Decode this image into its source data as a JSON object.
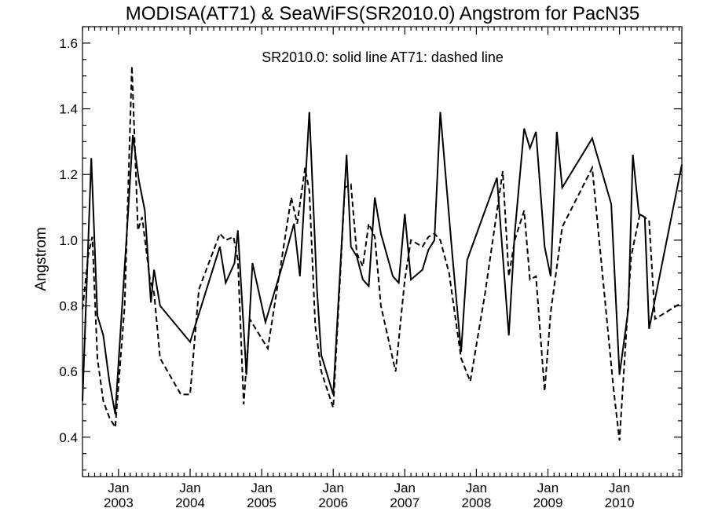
{
  "chart_data": {
    "type": "line",
    "title": "MODISA(AT71) & SeaWiFS(SR2010.0)  Angstrom for PacN35",
    "annotation": "SR2010.0: solid line   AT71: dashed line",
    "xlabel": "",
    "ylabel": "Angstrom",
    "xlim": [
      "2002-07-01",
      "2010-11-15"
    ],
    "ylim": [
      0.28,
      1.65
    ],
    "yticks": [
      0.4,
      0.6,
      0.8,
      1.0,
      1.2,
      1.4,
      1.6
    ],
    "yticklabels": [
      "0.4",
      "0.6",
      "0.8",
      "1.0",
      "1.2",
      "1.4",
      "1.6"
    ],
    "xticks": [
      {
        "date": "2003-01-01",
        "line1": "Jan",
        "line2": "2003"
      },
      {
        "date": "2004-01-01",
        "line1": "Jan",
        "line2": "2004"
      },
      {
        "date": "2005-01-01",
        "line1": "Jan",
        "line2": "2005"
      },
      {
        "date": "2006-01-01",
        "line1": "Jan",
        "line2": "2006"
      },
      {
        "date": "2007-01-01",
        "line1": "Jan",
        "line2": "2007"
      },
      {
        "date": "2008-01-01",
        "line1": "Jan",
        "line2": "2008"
      },
      {
        "date": "2009-01-01",
        "line1": "Jan",
        "line2": "2009"
      },
      {
        "date": "2010-01-01",
        "line1": "Jan",
        "line2": "2010"
      }
    ],
    "grid": false,
    "series": [
      {
        "name": "SR2010.0",
        "style": "solid",
        "color": "#000000",
        "points": [
          [
            "2002-07-01",
            0.51
          ],
          [
            "2002-08-15",
            1.25
          ],
          [
            "2002-09-15",
            0.77
          ],
          [
            "2002-10-15",
            0.71
          ],
          [
            "2002-11-15",
            0.57
          ],
          [
            "2002-12-15",
            0.47
          ],
          [
            "2003-02-15",
            1.05
          ],
          [
            "2003-03-15",
            1.32
          ],
          [
            "2003-04-15",
            1.18
          ],
          [
            "2003-05-15",
            1.09
          ],
          [
            "2003-06-15",
            0.81
          ],
          [
            "2003-07-01",
            0.91
          ],
          [
            "2003-08-01",
            0.8
          ],
          [
            "2004-01-01",
            0.69
          ],
          [
            "2004-06-01",
            0.98
          ],
          [
            "2004-07-01",
            0.87
          ],
          [
            "2004-08-15",
            0.93
          ],
          [
            "2004-09-01",
            1.03
          ],
          [
            "2004-10-15",
            0.59
          ],
          [
            "2004-11-15",
            0.93
          ],
          [
            "2005-01-20",
            0.75
          ],
          [
            "2005-04-15",
            0.92
          ],
          [
            "2005-06-15",
            1.05
          ],
          [
            "2005-07-15",
            0.89
          ],
          [
            "2005-09-01",
            1.39
          ],
          [
            "2005-10-10",
            0.85
          ],
          [
            "2005-11-01",
            0.65
          ],
          [
            "2006-01-01",
            0.53
          ],
          [
            "2006-03-10",
            1.26
          ],
          [
            "2006-04-01",
            0.98
          ],
          [
            "2006-05-01",
            0.95
          ],
          [
            "2006-06-01",
            0.88
          ],
          [
            "2006-07-01",
            0.86
          ],
          [
            "2006-08-01",
            1.13
          ],
          [
            "2006-09-01",
            1.02
          ],
          [
            "2006-11-01",
            0.89
          ],
          [
            "2006-12-01",
            0.87
          ],
          [
            "2007-01-01",
            1.08
          ],
          [
            "2007-02-01",
            0.88
          ],
          [
            "2007-04-01",
            0.91
          ],
          [
            "2007-05-01",
            0.97
          ],
          [
            "2007-06-01",
            1.0
          ],
          [
            "2007-07-01",
            1.39
          ],
          [
            "2007-09-01",
            0.95
          ],
          [
            "2007-10-15",
            0.66
          ],
          [
            "2007-11-15",
            0.94
          ],
          [
            "2008-04-15",
            1.19
          ],
          [
            "2008-06-15",
            0.71
          ],
          [
            "2008-07-15",
            1.02
          ],
          [
            "2008-09-01",
            1.34
          ],
          [
            "2008-10-01",
            1.28
          ],
          [
            "2008-11-01",
            1.33
          ],
          [
            "2008-12-15",
            0.98
          ],
          [
            "2009-01-15",
            0.89
          ],
          [
            "2009-02-15",
            1.33
          ],
          [
            "2009-03-15",
            1.16
          ],
          [
            "2009-08-15",
            1.31
          ],
          [
            "2009-11-20",
            1.11
          ],
          [
            "2010-01-01",
            0.59
          ],
          [
            "2010-02-15",
            0.79
          ],
          [
            "2010-03-10",
            1.26
          ],
          [
            "2010-04-10",
            1.08
          ],
          [
            "2010-05-10",
            1.07
          ],
          [
            "2010-06-01",
            0.73
          ],
          [
            "2010-11-15",
            1.23
          ]
        ]
      },
      {
        "name": "AT71",
        "style": "dashed",
        "color": "#000000",
        "points": [
          [
            "2002-07-01",
            0.79
          ],
          [
            "2002-08-01",
            0.96
          ],
          [
            "2002-08-20",
            1.01
          ],
          [
            "2002-09-15",
            0.64
          ],
          [
            "2002-10-15",
            0.51
          ],
          [
            "2002-11-15",
            0.46
          ],
          [
            "2002-12-15",
            0.43
          ],
          [
            "2003-02-01",
            0.8
          ],
          [
            "2003-03-10",
            1.53
          ],
          [
            "2003-04-10",
            1.03
          ],
          [
            "2003-05-01",
            1.07
          ],
          [
            "2003-06-10",
            0.88
          ],
          [
            "2003-07-01",
            0.84
          ],
          [
            "2003-08-01",
            0.64
          ],
          [
            "2003-11-15",
            0.53
          ],
          [
            "2004-01-01",
            0.53
          ],
          [
            "2004-02-15",
            0.85
          ],
          [
            "2004-06-01",
            1.02
          ],
          [
            "2004-07-01",
            1.0
          ],
          [
            "2004-08-10",
            1.01
          ],
          [
            "2004-09-01",
            0.94
          ],
          [
            "2004-10-01",
            0.5
          ],
          [
            "2004-11-01",
            0.76
          ],
          [
            "2005-02-01",
            0.67
          ],
          [
            "2005-06-01",
            1.13
          ],
          [
            "2005-07-01",
            1.05
          ],
          [
            "2005-08-10",
            1.22
          ],
          [
            "2005-09-01",
            1.15
          ],
          [
            "2005-10-01",
            0.74
          ],
          [
            "2005-11-01",
            0.6
          ],
          [
            "2006-01-01",
            0.49
          ],
          [
            "2006-03-01",
            1.16
          ],
          [
            "2006-04-01",
            1.17
          ],
          [
            "2006-05-01",
            0.96
          ],
          [
            "2006-06-01",
            0.92
          ],
          [
            "2006-07-01",
            1.05
          ],
          [
            "2006-08-01",
            1.01
          ],
          [
            "2006-09-01",
            0.8
          ],
          [
            "2006-11-15",
            0.6
          ],
          [
            "2007-01-01",
            0.88
          ],
          [
            "2007-02-01",
            1.0
          ],
          [
            "2007-04-01",
            0.98
          ],
          [
            "2007-05-01",
            1.01
          ],
          [
            "2007-06-01",
            1.02
          ],
          [
            "2007-07-01",
            1.0
          ],
          [
            "2007-08-15",
            0.9
          ],
          [
            "2007-10-15",
            0.64
          ],
          [
            "2007-12-01",
            0.57
          ],
          [
            "2008-02-15",
            0.84
          ],
          [
            "2008-05-15",
            1.21
          ],
          [
            "2008-06-15",
            0.89
          ],
          [
            "2008-07-15",
            1.0
          ],
          [
            "2008-09-01",
            1.09
          ],
          [
            "2008-10-01",
            0.88
          ],
          [
            "2008-11-01",
            0.89
          ],
          [
            "2008-12-15",
            0.54
          ],
          [
            "2009-01-15",
            0.78
          ],
          [
            "2009-03-15",
            1.04
          ],
          [
            "2009-08-15",
            1.22
          ],
          [
            "2009-12-01",
            0.55
          ],
          [
            "2010-01-01",
            0.39
          ],
          [
            "2010-03-01",
            0.95
          ],
          [
            "2010-04-15",
            1.08
          ],
          [
            "2010-06-01",
            1.06
          ],
          [
            "2010-07-01",
            0.76
          ],
          [
            "2010-11-15",
            0.81
          ]
        ]
      }
    ]
  }
}
